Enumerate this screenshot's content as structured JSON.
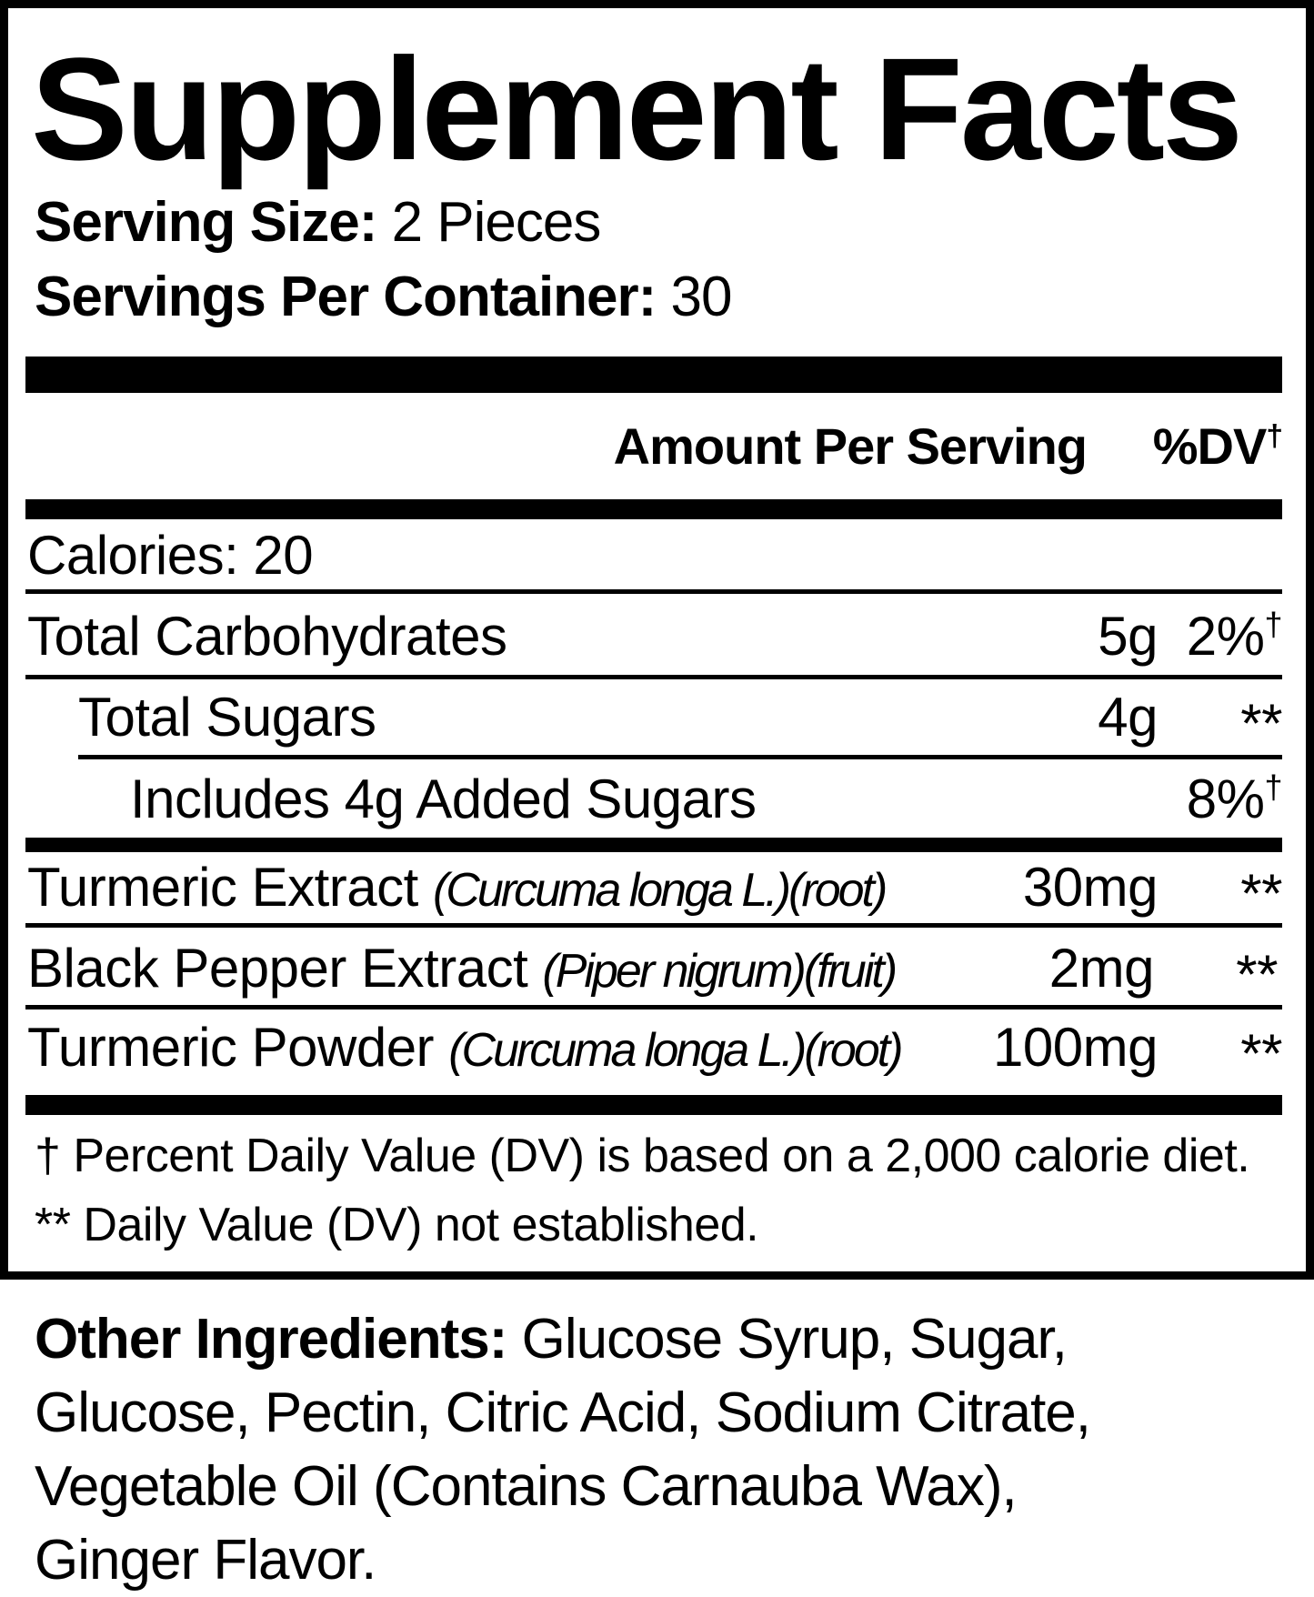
{
  "title": "Supplement Facts",
  "serving_size": {
    "label": "Serving Size:",
    "value": "2 Pieces"
  },
  "servings_per_container": {
    "label": "Servings Per Container:",
    "value": "30"
  },
  "header": {
    "amount": "Amount Per Serving",
    "dv": "%DV",
    "dv_mark": "†"
  },
  "calories": "Calories: 20",
  "rows": [
    {
      "name": "Total Carbohydrates",
      "latin": "",
      "amount": "5g",
      "dv": "2%",
      "mark": "†"
    },
    {
      "name": "Total Sugars",
      "latin": "",
      "amount": "4g",
      "dv": "**",
      "mark": ""
    },
    {
      "name": "Includes 4g Added Sugars",
      "latin": "",
      "amount": "",
      "dv": "8%",
      "mark": "†"
    },
    {
      "name": "Turmeric Extract",
      "latin": "(Curcuma longa L.)(root)",
      "amount": "30mg",
      "dv": "**",
      "mark": ""
    },
    {
      "name": "Black Pepper Extract",
      "latin": "(Piper nigrum)(fruit)",
      "amount": "2mg",
      "dv": "**",
      "mark": ""
    },
    {
      "name": "Turmeric Powder",
      "latin": "(Curcuma longa L.)(root)",
      "amount": "100mg",
      "dv": "**",
      "mark": ""
    }
  ],
  "footnotes": [
    "† Percent Daily Value (DV) is based on a 2,000 calorie diet.",
    "** Daily Value (DV) not established."
  ],
  "other_ingredients": {
    "label": "Other Ingredients:",
    "text": "Glucose Syrup, Sugar, Glucose, Pectin, Citric Acid, Sodium Citrate, Vegetable Oil (Contains Carnauba Wax), Ginger Flavor."
  }
}
